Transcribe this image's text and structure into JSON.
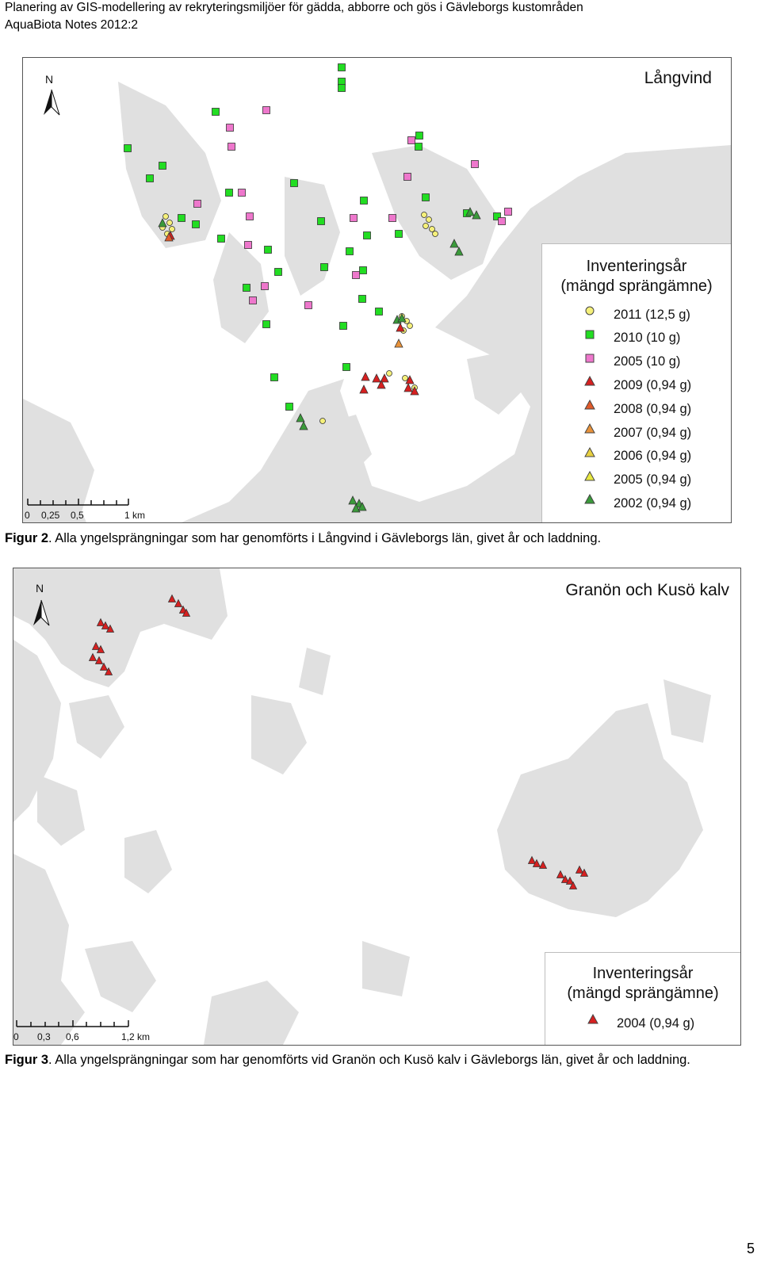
{
  "header": {
    "line1": "Planering av GIS-modellering av rekryteringsmiljöer för gädda, abborre och gös i Gävleborgs kustområden",
    "line2": "AquaBiota Notes 2012:2"
  },
  "figure2": {
    "map_title": "Långvind",
    "north_label": "N",
    "scale_labels": [
      "0",
      "0,25",
      "0,5",
      "1 km"
    ],
    "legend_title_1": "Inventeringsår",
    "legend_title_2": "(mängd sprängämne)",
    "legend": [
      {
        "label": "2011 (12,5 g)",
        "shape": "circle",
        "color": "#f5f07a"
      },
      {
        "label": "2010 (10 g)",
        "shape": "square",
        "color": "#22dd22"
      },
      {
        "label": "2005 (10 g)",
        "shape": "square",
        "color": "#ee77cc"
      },
      {
        "label": "2009 (0,94 g)",
        "shape": "triangle",
        "color": "#d62020"
      },
      {
        "label": "2008 (0,94 g)",
        "shape": "triangle",
        "color": "#e05a2a"
      },
      {
        "label": "2007 (0,94 g)",
        "shape": "triangle",
        "color": "#e8923a"
      },
      {
        "label": "2006 (0,94 g)",
        "shape": "triangle",
        "color": "#e8d040"
      },
      {
        "label": "2005 (0,94 g)",
        "shape": "triangle",
        "color": "#e8e840"
      },
      {
        "label": "2002 (0,94 g)",
        "shape": "triangle",
        "color": "#3a9a3a"
      }
    ],
    "caption_label": "Figur 2",
    "caption_text": ". Alla yngelsprängningar som har genomförts i Långvind i Gävleborgs län, givet år och laddning."
  },
  "figure3": {
    "map_title": "Granön och Kusö kalv",
    "north_label": "N",
    "scale_labels": [
      "0",
      "0,3",
      "0,6",
      "1,2 km"
    ],
    "legend_title_1": "Inventeringsår",
    "legend_title_2": "(mängd sprängämne)",
    "legend": [
      {
        "label": "2004 (0,94 g)",
        "shape": "triangle",
        "color": "#d62020"
      }
    ],
    "caption_label": "Figur 3",
    "caption_text": ". Alla yngelsprängningar som har genomförts vid Granön och Kusö kalv i Gävleborgs län, givet år och laddning."
  },
  "page_number": "5"
}
